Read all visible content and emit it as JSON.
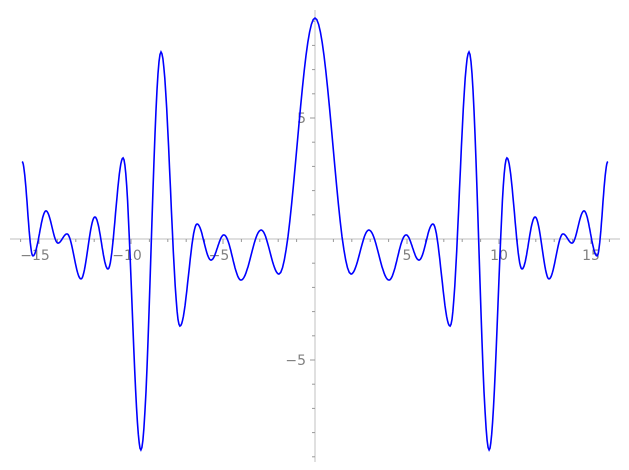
{
  "chart_data": {
    "type": "line",
    "title": "",
    "xlabel": "",
    "ylabel": "",
    "xlim": [
      -16,
      16
    ],
    "ylim": [
      -9,
      9.3
    ],
    "grid": false,
    "line_color": "#0000ff",
    "axis_color": "#cccccc",
    "tick_label_color": "#808080",
    "x_ticks": [
      -15,
      -10,
      -5,
      5,
      10,
      15
    ],
    "x_tick_labels": [
      "−15",
      "−10",
      "−5",
      "5",
      "10",
      "15"
    ],
    "y_ticks": [
      -5,
      5
    ],
    "y_tick_labels": [
      "−5",
      "5"
    ],
    "series": [
      {
        "symmetry": "even",
        "points_right_half": [
          [
            0,
            9.13
          ],
          [
            1.96,
            -1.45
          ],
          [
            2.93,
            0.37
          ],
          [
            4.02,
            -1.7
          ],
          [
            4.95,
            0.17
          ],
          [
            5.65,
            -0.87
          ],
          [
            6.41,
            0.62
          ],
          [
            7.34,
            -3.6
          ],
          [
            8.37,
            7.73
          ],
          [
            9.46,
            -8.72
          ],
          [
            10.43,
            3.35
          ],
          [
            11.25,
            -1.24
          ],
          [
            11.96,
            0.91
          ],
          [
            12.72,
            -1.65
          ],
          [
            13.48,
            0.21
          ],
          [
            13.97,
            -0.17
          ],
          [
            14.62,
            1.16
          ],
          [
            15.33,
            -0.7
          ],
          [
            15.92,
            3.2
          ]
        ]
      }
    ]
  }
}
